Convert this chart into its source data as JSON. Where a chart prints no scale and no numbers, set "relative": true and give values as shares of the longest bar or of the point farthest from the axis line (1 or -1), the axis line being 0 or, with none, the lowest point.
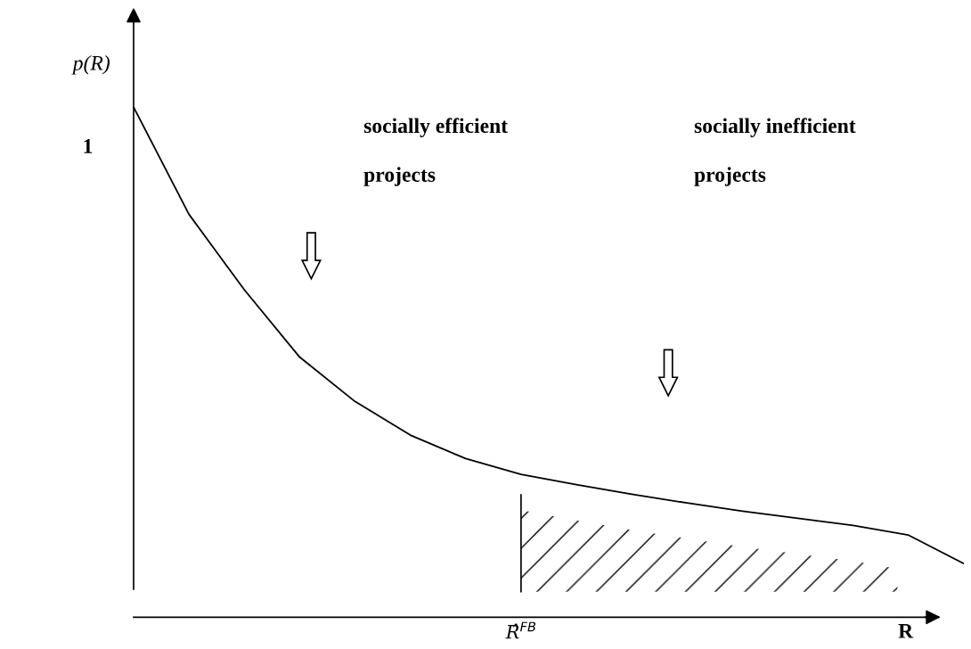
{
  "chart_data": {
    "type": "line",
    "relative": true,
    "ylabel": "p(R)",
    "xlabel": "R",
    "categories": [
      null,
      null,
      null,
      null,
      null,
      null,
      null,
      null,
      null,
      null,
      null,
      null,
      null,
      null,
      null,
      null
    ],
    "series": [
      {
        "color": "#000000",
        "values": [
          1.0,
          0.79,
          0.642,
          0.51,
          0.423,
          0.357,
          0.311,
          0.28,
          0.26,
          0.241,
          0.224,
          0.208,
          0.194,
          0.18,
          0.161,
          0.105
        ]
      }
    ],
    "annotations": [
      "1",
      "socially efficient",
      "projects",
      "socially inefficient",
      "projects",
      "R̂$^{FB}$"
    ],
    "marker": "none",
    "line_style": "solid"
  }
}
